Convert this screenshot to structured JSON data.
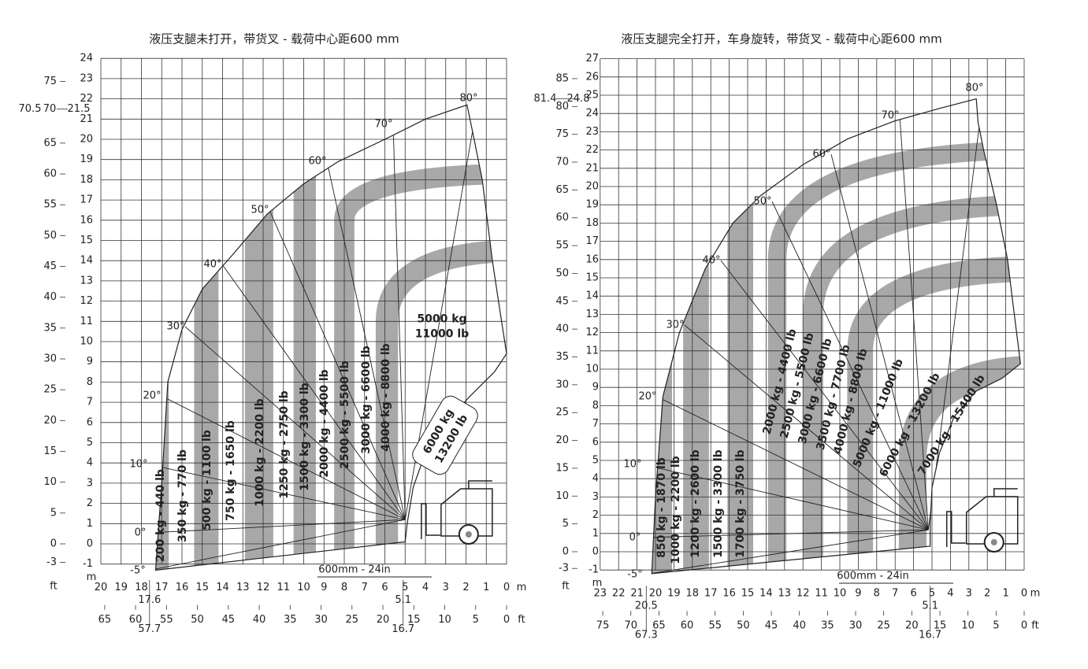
{
  "charts": [
    {
      "title": "液压支腿未打开，带货叉 - 载荷中心距600 mm",
      "y_m_ticks": [
        -1,
        0,
        1,
        2,
        3,
        4,
        5,
        6,
        7,
        8,
        9,
        10,
        11,
        12,
        13,
        14,
        15,
        16,
        17,
        18,
        19,
        20,
        21,
        22,
        23,
        24
      ],
      "y_ft_ticks": [
        -3,
        0,
        5,
        10,
        15,
        20,
        25,
        30,
        35,
        40,
        45,
        50,
        55,
        60,
        65,
        75
      ],
      "y_ft_row": [
        "70.5",
        "70",
        "21.5"
      ],
      "y_ft_unit": "ft",
      "y_m_unit": "m",
      "x_m_ticks": [
        20,
        19,
        18,
        17,
        16,
        15,
        14,
        13,
        12,
        11,
        10,
        9,
        8,
        7,
        6,
        5,
        4,
        3,
        2,
        1,
        0
      ],
      "x_m_unit": "m",
      "x_ft_ticks": [
        65,
        60,
        55,
        50,
        45,
        40,
        35,
        30,
        25,
        20,
        15,
        10,
        5,
        0
      ],
      "x_ft_unit": "ft",
      "x_m_marks": [
        "17.6",
        "5.1"
      ],
      "x_ft_marks": [
        "57.7",
        "16.7"
      ],
      "angles": [
        "-5°",
        "0°",
        "10°",
        "20°",
        "30°",
        "40°",
        "50°",
        "60°",
        "70°",
        "80°"
      ],
      "bands": [
        "200 kg - 440 lb",
        "350 kg - 770 lb",
        "500 kg - 1100 lb",
        "750 kg - 1650 lb",
        "1000 kg - 2200 lb",
        "1250 kg - 2750 lb",
        "1500 kg - 3300 lb",
        "2000 kg - 4400 lb",
        "2500 kg - 5500 lb",
        "3000 kg - 6600 lb",
        "4000 kg - 8800 lb"
      ],
      "stacked_labels": [
        [
          "5000 kg",
          "11000 lb"
        ],
        [
          "6000 kg",
          "13200 lb"
        ]
      ],
      "load_center": "600mm - 24in"
    },
    {
      "title": "液压支腿完全打开，车身旋转，带货叉 - 载荷中心距600 mm",
      "y_m_ticks": [
        -1,
        0,
        1,
        2,
        3,
        4,
        5,
        6,
        7,
        8,
        9,
        10,
        11,
        12,
        13,
        14,
        15,
        16,
        17,
        18,
        19,
        20,
        21,
        22,
        23,
        24,
        25,
        26,
        27
      ],
      "y_ft_ticks": [
        -3,
        0,
        5,
        10,
        15,
        20,
        25,
        30,
        35,
        40,
        45,
        50,
        55,
        60,
        65,
        70,
        75,
        80,
        85
      ],
      "y_ft_row": [
        "81.4",
        "24.8"
      ],
      "y_ft_unit": "ft",
      "y_m_unit": "m",
      "x_m_ticks": [
        23,
        22,
        21,
        20,
        19,
        18,
        17,
        16,
        15,
        14,
        13,
        12,
        11,
        10,
        9,
        8,
        7,
        6,
        5,
        4,
        3,
        2,
        1,
        0
      ],
      "x_m_unit": "m",
      "x_ft_ticks": [
        75,
        70,
        65,
        60,
        55,
        50,
        45,
        40,
        35,
        30,
        25,
        20,
        15,
        10,
        5,
        0
      ],
      "x_ft_unit": "ft",
      "x_m_marks": [
        "20.5",
        "5.1"
      ],
      "x_ft_marks": [
        "67.3",
        "16.7"
      ],
      "angles": [
        "-5°",
        "0°",
        "10°",
        "20°",
        "30°",
        "40°",
        "50°",
        "60°",
        "70°",
        "80°"
      ],
      "bands": [
        "850 kg - 1870 lb",
        "1000 kg - 2200 lb",
        "1200 kg - 2600 lb",
        "1500 kg - 3300 lb",
        "1700 kg - 3750 lb",
        "2000 kg - 4400 lb",
        "2500 kg - 5500 lb",
        "3000 kg - 6600 lb",
        "3500 kg - 7700 lb",
        "4000 kg - 8800 lb",
        "5000 kg - 11000 lb",
        "6000 kg - 13200 lb",
        "7000 kg - 15400 lb"
      ],
      "stacked_labels": [],
      "load_center": "600mm - 24in"
    }
  ]
}
